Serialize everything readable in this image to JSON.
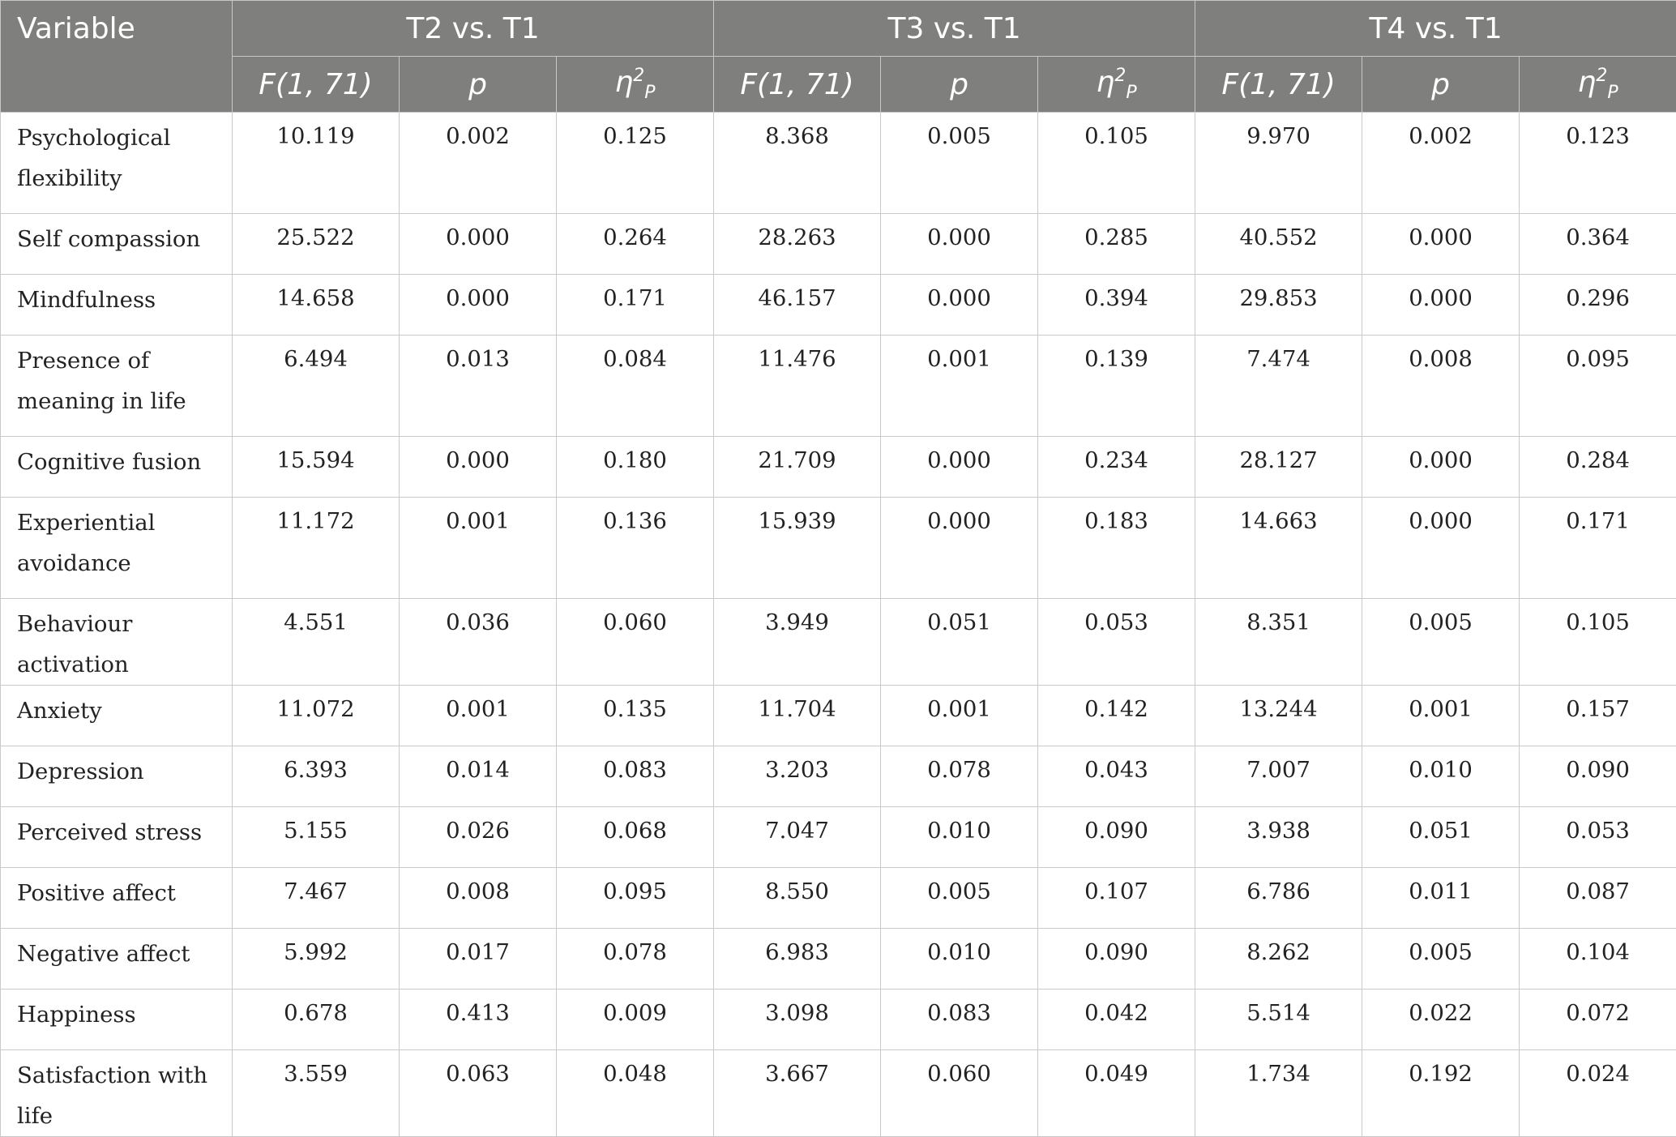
{
  "table": {
    "header": {
      "variable": "Variable",
      "groups": [
        "T2 vs. T1",
        "T3 vs. T1",
        "T4 vs. T1"
      ],
      "subheaders": {
        "f": "F(1, 71)",
        "p": "p",
        "eta_base": "η",
        "eta_sup": "2",
        "eta_sub": "P"
      }
    },
    "rows": [
      {
        "variable": "Psychological flexibility",
        "wrap": true,
        "values": [
          "10.119",
          "0.002",
          "0.125",
          "8.368",
          "0.005",
          "0.105",
          "9.970",
          "0.002",
          "0.123"
        ]
      },
      {
        "variable": "Self compassion",
        "wrap": false,
        "values": [
          "25.522",
          "0.000",
          "0.264",
          "28.263",
          "0.000",
          "0.285",
          "40.552",
          "0.000",
          "0.364"
        ]
      },
      {
        "variable": "Mindfulness",
        "wrap": false,
        "values": [
          "14.658",
          "0.000",
          "0.171",
          "46.157",
          "0.000",
          "0.394",
          "29.853",
          "0.000",
          "0.296"
        ]
      },
      {
        "variable": "Presence of meaning in life",
        "wrap": true,
        "values": [
          "6.494",
          "0.013",
          "0.084",
          "11.476",
          "0.001",
          "0.139",
          "7.474",
          "0.008",
          "0.095"
        ]
      },
      {
        "variable": "Cognitive fusion",
        "wrap": false,
        "values": [
          "15.594",
          "0.000",
          "0.180",
          "21.709",
          "0.000",
          "0.234",
          "28.127",
          "0.000",
          "0.284"
        ]
      },
      {
        "variable": "Experiential avoidance",
        "wrap": true,
        "values": [
          "11.172",
          "0.001",
          "0.136",
          "15.939",
          "0.000",
          "0.183",
          "14.663",
          "0.000",
          "0.171"
        ]
      },
      {
        "variable": "Behaviour activation",
        "wrap": false,
        "values": [
          "4.551",
          "0.036",
          "0.060",
          "3.949",
          "0.051",
          "0.053",
          "8.351",
          "0.005",
          "0.105"
        ]
      },
      {
        "variable": "Anxiety",
        "wrap": false,
        "values": [
          "11.072",
          "0.001",
          "0.135",
          "11.704",
          "0.001",
          "0.142",
          "13.244",
          "0.001",
          "0.157"
        ]
      },
      {
        "variable": "Depression",
        "wrap": false,
        "values": [
          "6.393",
          "0.014",
          "0.083",
          "3.203",
          "0.078",
          "0.043",
          "7.007",
          "0.010",
          "0.090"
        ]
      },
      {
        "variable": "Perceived stress",
        "wrap": false,
        "values": [
          "5.155",
          "0.026",
          "0.068",
          "7.047",
          "0.010",
          "0.090",
          "3.938",
          "0.051",
          "0.053"
        ]
      },
      {
        "variable": "Positive affect",
        "wrap": false,
        "values": [
          "7.467",
          "0.008",
          "0.095",
          "8.550",
          "0.005",
          "0.107",
          "6.786",
          "0.011",
          "0.087"
        ]
      },
      {
        "variable": "Negative affect",
        "wrap": false,
        "values": [
          "5.992",
          "0.017",
          "0.078",
          "6.983",
          "0.010",
          "0.090",
          "8.262",
          "0.005",
          "0.104"
        ]
      },
      {
        "variable": "Happiness",
        "wrap": false,
        "values": [
          "0.678",
          "0.413",
          "0.009",
          "3.098",
          "0.083",
          "0.042",
          "5.514",
          "0.022",
          "0.072"
        ]
      },
      {
        "variable": "Satisfaction with life",
        "wrap": false,
        "values": [
          "3.559",
          "0.063",
          "0.048",
          "3.667",
          "0.060",
          "0.049",
          "1.734",
          "0.192",
          "0.024"
        ]
      }
    ]
  }
}
